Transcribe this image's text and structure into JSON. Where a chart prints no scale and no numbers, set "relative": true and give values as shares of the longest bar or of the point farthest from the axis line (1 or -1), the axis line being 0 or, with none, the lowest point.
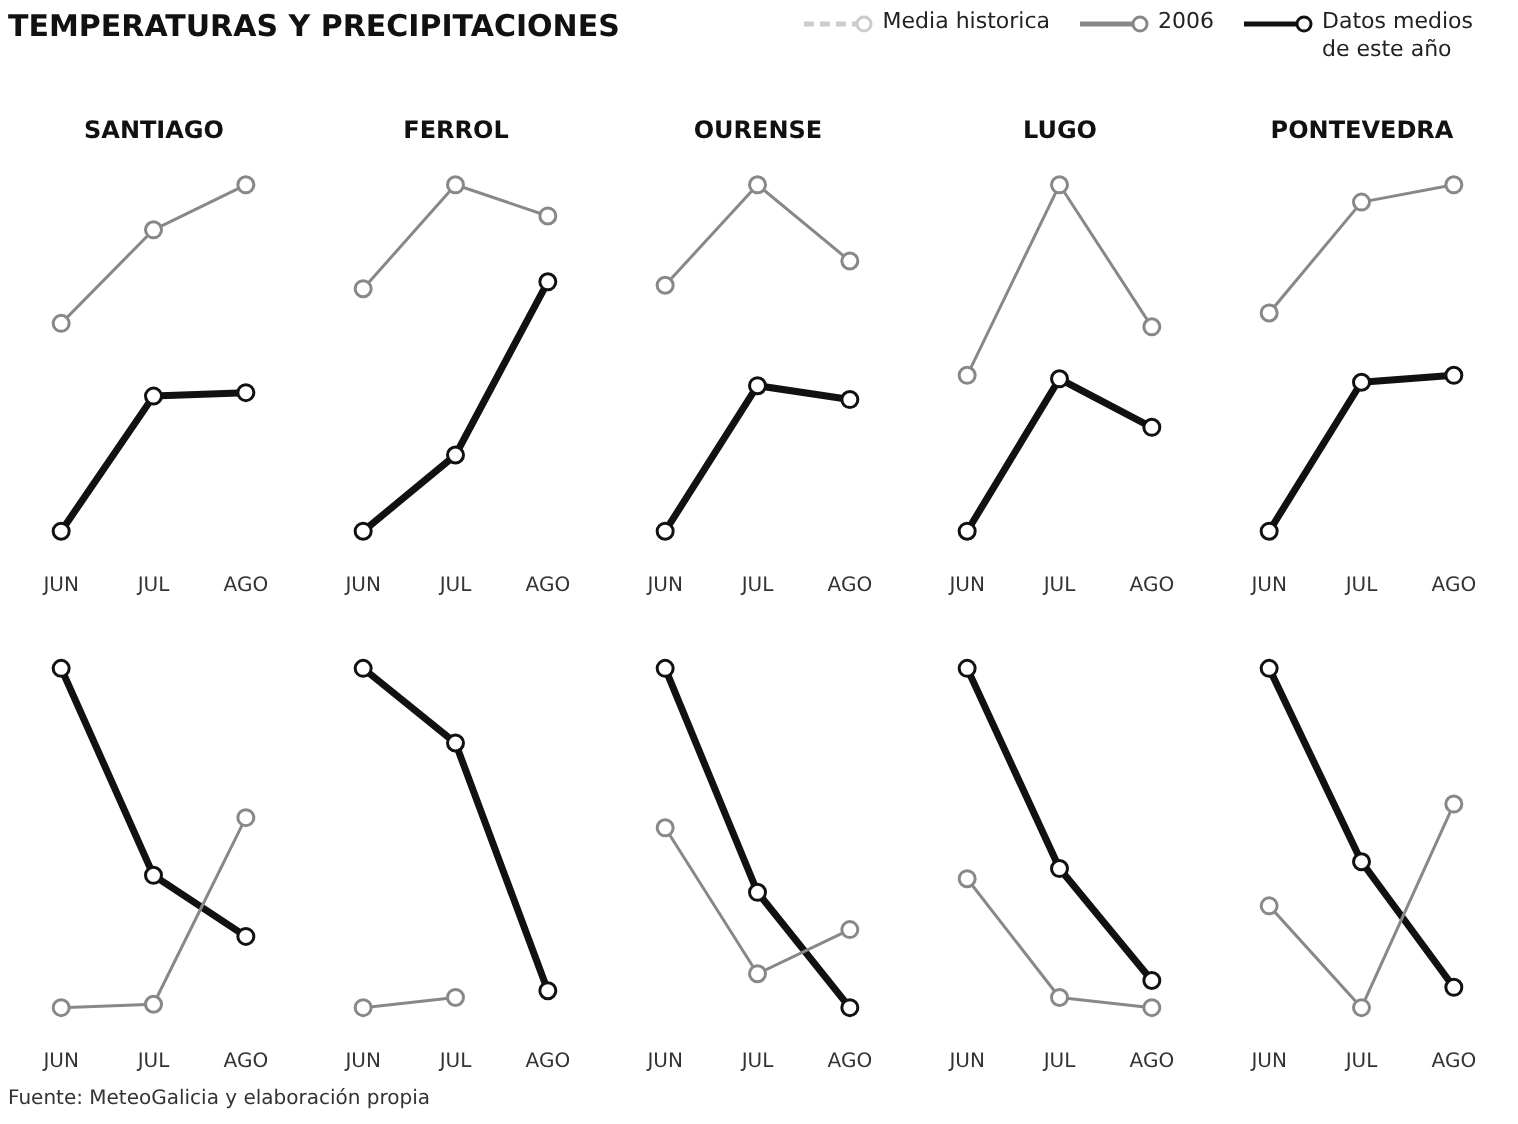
{
  "chart_data": [
    {
      "type": "line",
      "title": "SANTIAGO",
      "annotations": [
        "TEMPERATURAS Y PRECIPITACIONES"
      ],
      "legend": "top right",
      "marker": "circle",
      "relative": true,
      "categories": [
        "JUN",
        "JUL",
        "AGO"
      ],
      "series": [
        {
          "name": "Media historica",
          "color": "#cccccc",
          "line_style": "dashed",
          "values": [
            null,
            null,
            null
          ]
        },
        {
          "name": "2006",
          "color": "#888888",
          "values": [
            0.6,
            0.87,
            1
          ]
        },
        {
          "name": "Datos medios de este año",
          "color": "#111111",
          "values": [
            0,
            0.39,
            0.4
          ]
        }
      ]
    },
    {
      "type": "line",
      "title": "FERROL",
      "marker": "circle",
      "relative": true,
      "categories": [
        "JUN",
        "JUL",
        "AGO"
      ],
      "series": [
        {
          "color": "#888888",
          "values": [
            0.7,
            1,
            0.91
          ]
        },
        {
          "color": "#111111",
          "values": [
            0,
            0.22,
            0.72
          ]
        }
      ]
    },
    {
      "type": "line",
      "title": "OURENSE",
      "marker": "circle",
      "relative": true,
      "categories": [
        "JUN",
        "JUL",
        "AGO"
      ],
      "series": [
        {
          "color": "#888888",
          "values": [
            0.71,
            1,
            0.78
          ]
        },
        {
          "color": "#111111",
          "values": [
            0,
            0.42,
            0.38
          ]
        }
      ]
    },
    {
      "type": "line",
      "title": "LUGO",
      "marker": "circle",
      "relative": true,
      "categories": [
        "JUN",
        "JUL",
        "AGO"
      ],
      "series": [
        {
          "color": "#888888",
          "values": [
            0.45,
            1,
            0.59
          ]
        },
        {
          "color": "#111111",
          "values": [
            0,
            0.44,
            0.3
          ]
        }
      ]
    },
    {
      "type": "line",
      "title": "PONTEVEDRA",
      "marker": "circle",
      "relative": true,
      "categories": [
        "JUN",
        "JUL",
        "AGO"
      ],
      "series": [
        {
          "color": "#888888",
          "values": [
            0.63,
            0.95,
            1
          ]
        },
        {
          "color": "#111111",
          "values": [
            0,
            0.43,
            0.45
          ]
        }
      ]
    },
    {
      "type": "line",
      "annotations": [
        "Fuente: MeteoGalicia y elaboración propia"
      ],
      "marker": "circle",
      "relative": true,
      "categories": [
        "JUN",
        "JUL",
        "AGO"
      ],
      "series": [
        {
          "color": "#888888",
          "values": [
            0,
            0.01,
            0.56
          ]
        },
        {
          "color": "#111111",
          "values": [
            1,
            0.39,
            0.21
          ]
        }
      ]
    },
    {
      "type": "line",
      "marker": "circle",
      "relative": true,
      "categories": [
        "JUN",
        "JUL",
        "AGO"
      ],
      "series": [
        {
          "color": "#888888",
          "values": [
            0,
            0.03,
            null
          ]
        },
        {
          "color": "#111111",
          "values": [
            1,
            0.78,
            0.05
          ]
        }
      ]
    },
    {
      "type": "line",
      "marker": "circle",
      "relative": true,
      "categories": [
        "JUN",
        "JUL",
        "AGO"
      ],
      "series": [
        {
          "color": "#888888",
          "values": [
            0.53,
            0.1,
            0.23
          ]
        },
        {
          "color": "#111111",
          "values": [
            1,
            0.34,
            0
          ]
        }
      ]
    },
    {
      "type": "line",
      "marker": "circle",
      "relative": true,
      "categories": [
        "JUN",
        "JUL",
        "AGO"
      ],
      "series": [
        {
          "color": "#888888",
          "values": [
            0.38,
            0.03,
            0
          ]
        },
        {
          "color": "#111111",
          "values": [
            1,
            0.41,
            0.08
          ]
        }
      ]
    },
    {
      "type": "line",
      "marker": "circle",
      "relative": true,
      "categories": [
        "JUN",
        "JUL",
        "AGO"
      ],
      "series": [
        {
          "color": "#888888",
          "values": [
            0.3,
            0,
            0.6
          ]
        },
        {
          "color": "#111111",
          "values": [
            1,
            0.43,
            0.06
          ]
        }
      ]
    }
  ]
}
